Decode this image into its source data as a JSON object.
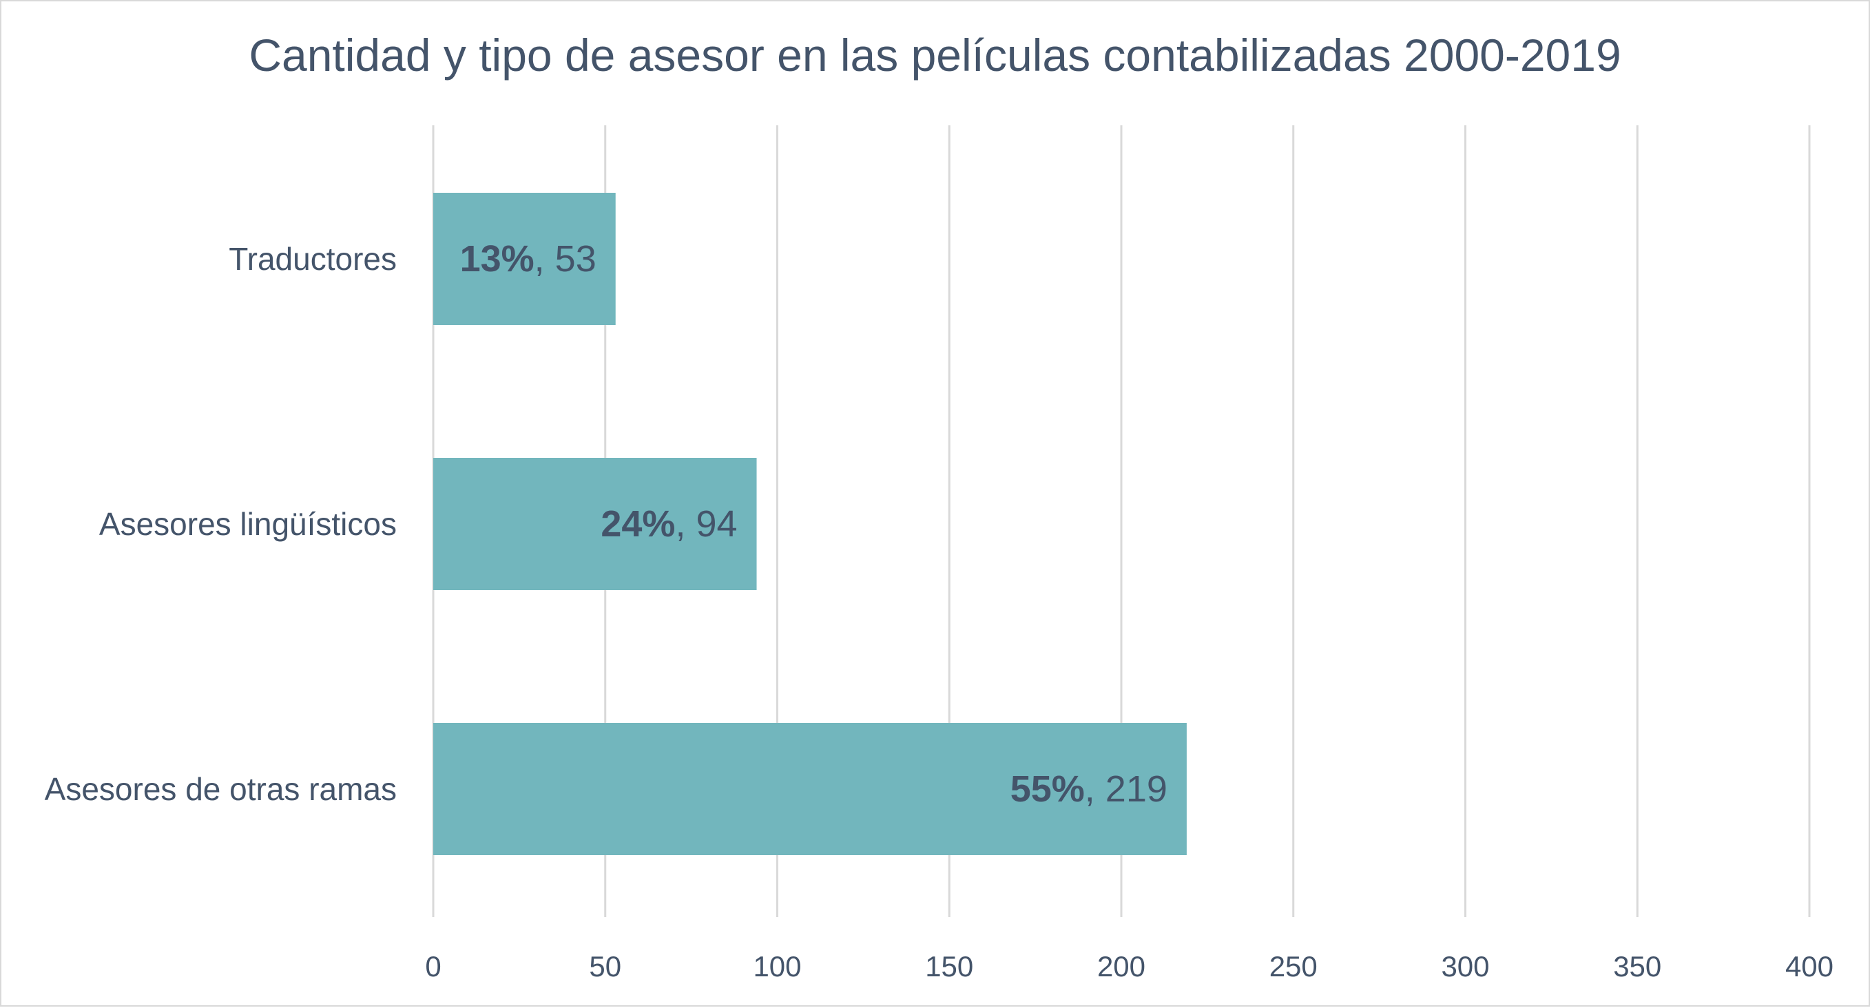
{
  "chart_data": {
    "type": "bar",
    "orientation": "horizontal",
    "title": "Cantidad y tipo de asesor en las películas contabilizadas 2000-2019",
    "categories": [
      "Traductores",
      "Asesores lingüísticos",
      "Asesores de otras ramas"
    ],
    "values": [
      53,
      94,
      219
    ],
    "percent_labels": [
      "13%",
      "24%",
      "55%"
    ],
    "xlim": [
      0,
      400
    ],
    "xticks": [
      0,
      50,
      100,
      150,
      200,
      250,
      300,
      350,
      400
    ],
    "grid": true,
    "legend": "none",
    "colors": {
      "bar": "#72b6bd",
      "text": "#44546a",
      "grid": "#d9d9d9"
    }
  }
}
